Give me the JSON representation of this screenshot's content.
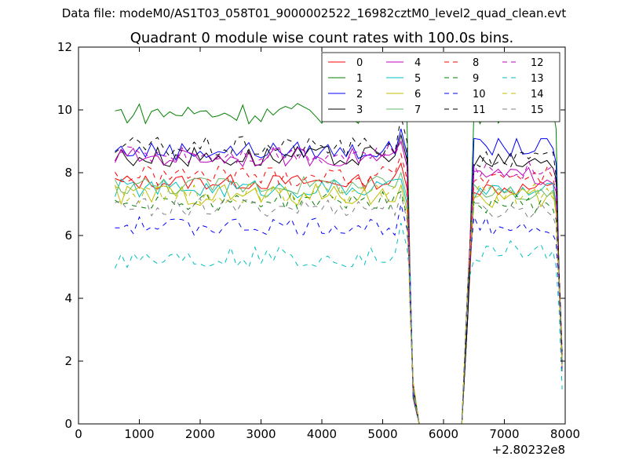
{
  "figure": {
    "suptitle": "Data file: modeM0/AS1T03_058T01_9000002522_16982cztM0_level2_quad_clean.evt"
  },
  "chart_data": {
    "type": "line",
    "title": "Quadrant 0 module wise count rates with 100.0s bins.",
    "xlabel": "",
    "ylabel": "",
    "x_offset_label": "+2.80232e8",
    "xlim": [
      0,
      8000
    ],
    "ylim": [
      0,
      12
    ],
    "xticks": [
      0,
      1000,
      2000,
      3000,
      4000,
      5000,
      6000,
      7000,
      8000
    ],
    "yticks": [
      0,
      2,
      4,
      6,
      8,
      10,
      12
    ],
    "grid": false,
    "legend_position": "top-right",
    "legend_columns": 4,
    "x_segments": [
      {
        "start": 600,
        "end": 5500,
        "step": 100
      },
      {
        "start": 5500,
        "end": 6400,
        "step": 100
      },
      {
        "start": 6400,
        "end": 7900,
        "step": 100
      }
    ],
    "series": [
      {
        "name": "0",
        "color": "#ff0000",
        "dash": "solid",
        "base_before": 7.7,
        "base_after": 7.5,
        "amp": 0.25,
        "end_value": 1.9,
        "peak_5300": 8.3
      },
      {
        "name": "1",
        "color": "#008000",
        "dash": "solid",
        "base_before": 9.9,
        "base_after": 9.9,
        "amp": 0.35,
        "end_value": 2.0,
        "peak_5300": 10.4
      },
      {
        "name": "2",
        "color": "#0000ff",
        "dash": "solid",
        "base_before": 8.7,
        "base_after": 8.8,
        "amp": 0.3,
        "end_value": 2.2,
        "peak_5300": 9.4
      },
      {
        "name": "3",
        "color": "#000000",
        "dash": "solid",
        "base_before": 8.5,
        "base_after": 8.3,
        "amp": 0.35,
        "end_value": 2.1,
        "peak_5300": 9.2
      },
      {
        "name": "4",
        "color": "#bf00bf",
        "dash": "solid",
        "base_before": 8.5,
        "base_after": 7.9,
        "amp": 0.3,
        "end_value": 2.0,
        "peak_5300": 9.0
      },
      {
        "name": "5",
        "color": "#00bfbf",
        "dash": "solid",
        "base_before": 7.5,
        "base_after": 7.4,
        "amp": 0.3,
        "end_value": 1.8,
        "peak_5300": 7.8
      },
      {
        "name": "6",
        "color": "#bfbf00",
        "dash": "solid",
        "base_before": 7.3,
        "base_after": 7.2,
        "amp": 0.35,
        "end_value": 1.7,
        "peak_5300": 7.6
      },
      {
        "name": "7",
        "color": "#66bb6a",
        "dash": "solid",
        "base_before": 7.6,
        "base_after": 7.4,
        "amp": 0.3,
        "end_value": 2.0,
        "peak_5300": 8.0
      },
      {
        "name": "8",
        "color": "#ff0000",
        "dash": "dashed",
        "base_before": 7.9,
        "base_after": 7.9,
        "amp": 0.35,
        "end_value": 2.2,
        "peak_5300": 8.6
      },
      {
        "name": "9",
        "color": "#008000",
        "dash": "dashed",
        "base_before": 7.1,
        "base_after": 7.0,
        "amp": 0.3,
        "end_value": 1.9,
        "peak_5300": 7.4
      },
      {
        "name": "10",
        "color": "#0000ff",
        "dash": "dashed",
        "base_before": 6.3,
        "base_after": 6.3,
        "amp": 0.3,
        "end_value": 1.6,
        "peak_5300": 7.0
      },
      {
        "name": "11",
        "color": "#000000",
        "dash": "dashed",
        "base_before": 8.8,
        "base_after": 8.4,
        "amp": 0.35,
        "end_value": 2.3,
        "peak_5300": 9.8
      },
      {
        "name": "12",
        "color": "#bf00bf",
        "dash": "dashed",
        "base_before": 8.6,
        "base_after": 8.1,
        "amp": 0.3,
        "end_value": 1.8,
        "peak_5300": 9.0
      },
      {
        "name": "13",
        "color": "#00bfbf",
        "dash": "dashed",
        "base_before": 5.3,
        "base_after": 5.5,
        "amp": 0.35,
        "end_value": 1.1,
        "peak_5300": 6.4
      },
      {
        "name": "14",
        "color": "#bfbf00",
        "dash": "dashed",
        "base_before": 7.3,
        "base_after": 7.3,
        "amp": 0.35,
        "end_value": 1.9,
        "peak_5300": 7.6
      },
      {
        "name": "15",
        "color": "#808080",
        "dash": "dashed",
        "base_before": 6.9,
        "base_after": 6.8,
        "amp": 0.3,
        "end_value": 1.7,
        "peak_5300": 7.3
      }
    ],
    "gap_value": 0.0
  }
}
